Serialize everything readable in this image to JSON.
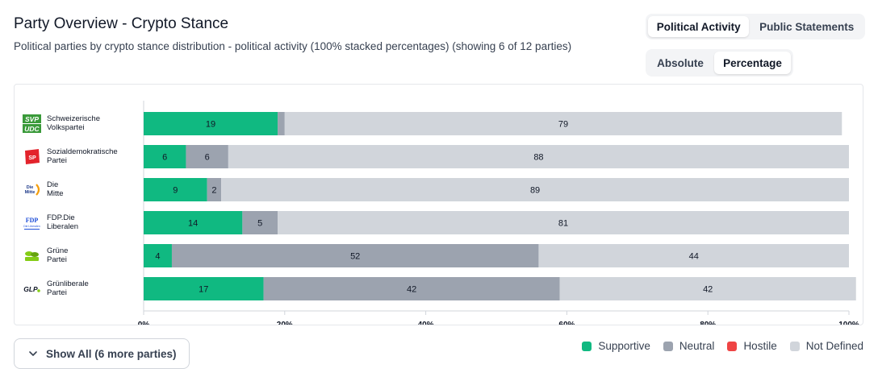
{
  "header": {
    "title": "Party Overview - Crypto Stance",
    "subtitle": "Political parties by crypto stance distribution - political activity (100% stacked percentages) (showing 6 of 12 parties)"
  },
  "view_toggle": {
    "political_activity": "Political Activity",
    "public_statements": "Public Statements"
  },
  "mode_toggle": {
    "absolute": "Absolute",
    "percentage": "Percentage"
  },
  "logos": {
    "svp_top": "SVP",
    "svp_bottom": "UDC",
    "sp": "SP",
    "mitte_a": "Die",
    "mitte_b": "Mitte",
    "fdp_a": "FDP",
    "fdp_b": "Die Liberalen",
    "glp": "GLP"
  },
  "chart_data": {
    "type": "bar",
    "orientation": "horizontal",
    "stacked": true,
    "categories": [
      [
        "Schweizerische",
        "Volkspartei"
      ],
      [
        "Sozialdemokratische",
        "Partei"
      ],
      [
        "Die",
        "Mitte"
      ],
      [
        "FDP.Die",
        "Liberalen"
      ],
      [
        "Grüne",
        "Partei"
      ],
      [
        "Grünliberale",
        "Partei"
      ]
    ],
    "series": [
      {
        "name": "Supportive",
        "color": "#10b981",
        "values": [
          19,
          6,
          9,
          14,
          4,
          17
        ]
      },
      {
        "name": "Neutral",
        "color": "#9ca3af",
        "values": [
          1,
          6,
          2,
          5,
          52,
          42
        ]
      },
      {
        "name": "Hostile",
        "color": "#ef4444",
        "values": [
          0,
          0,
          0,
          0,
          0,
          0
        ]
      },
      {
        "name": "Not Defined",
        "color": "#d1d5db",
        "values": [
          79,
          88,
          89,
          81,
          44,
          42
        ]
      }
    ],
    "xlim": [
      0,
      100
    ],
    "xticks": [
      "0%",
      "20%",
      "40%",
      "60%",
      "80%",
      "100%"
    ],
    "legend_position": "bottom-right"
  },
  "footer": {
    "show_all": "Show All (6 more parties)"
  }
}
